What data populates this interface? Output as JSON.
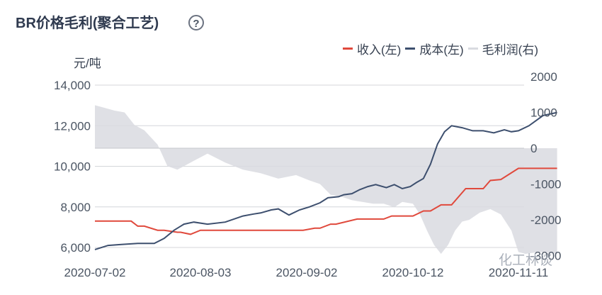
{
  "title": "BR价格毛利(聚合工艺)",
  "help_symbol": "?",
  "watermark": "化工林谈",
  "colors": {
    "revenue": "#e0493c",
    "cost": "#3d4f6e",
    "profit": "#d9dbe0",
    "grid": "#d4d6da"
  },
  "chart_data": {
    "type": "line",
    "title": "BR价格毛利(聚合工艺)",
    "left_axis": {
      "unit": "元/吨",
      "ticks": [
        6000,
        8000,
        10000,
        12000,
        14000
      ],
      "tick_labels": [
        "6,000",
        "8,000",
        "10,000",
        "12,000",
        "14,000"
      ],
      "range": [
        5600,
        14600
      ]
    },
    "right_axis": {
      "ticks": [
        -3000,
        -2000,
        -1000,
        0,
        1000,
        2000
      ],
      "tick_labels": [
        "-3000",
        "-2000",
        "-1000",
        "0",
        "1000",
        "2000"
      ],
      "range": [
        -3000,
        2000
      ]
    },
    "x_ticks": [
      "2020-07-02",
      "2020-08-03",
      "2020-09-02",
      "2020-10-12",
      "2020-11-11"
    ],
    "legend": [
      "收入(左)",
      "成本(左)",
      "毛利润(右)"
    ],
    "grid": true,
    "series": [
      {
        "name": "收入(左)",
        "axis": "left",
        "dates": [
          "2020-07-02",
          "2020-07-13",
          "2020-07-15",
          "2020-07-17",
          "2020-07-21",
          "2020-07-23",
          "2020-07-27",
          "2020-07-28",
          "2020-07-31",
          "2020-08-03",
          "2020-08-20",
          "2020-09-01",
          "2020-09-05",
          "2020-09-07",
          "2020-09-11",
          "2020-09-13",
          "2020-09-21",
          "2020-10-01",
          "2020-10-04",
          "2020-10-12",
          "2020-10-15",
          "2020-10-17",
          "2020-10-20",
          "2020-10-23",
          "2020-10-27",
          "2020-11-01",
          "2020-11-03",
          "2020-11-06",
          "2020-11-11",
          "2020-11-22"
        ],
        "values": [
          7300,
          7300,
          7050,
          7050,
          6850,
          6850,
          6750,
          6750,
          6650,
          6850,
          6850,
          6850,
          6950,
          6950,
          7150,
          7150,
          7400,
          7400,
          7550,
          7550,
          7800,
          7800,
          8100,
          8100,
          8900,
          8900,
          9300,
          9350,
          9900,
          9900
        ]
      },
      {
        "name": "成本(左)",
        "axis": "left",
        "dates": [
          "2020-07-02",
          "2020-07-06",
          "2020-07-10",
          "2020-07-15",
          "2020-07-20",
          "2020-07-23",
          "2020-07-26",
          "2020-07-29",
          "2020-08-01",
          "2020-08-05",
          "2020-08-10",
          "2020-08-15",
          "2020-08-18",
          "2020-08-20",
          "2020-08-23",
          "2020-08-25",
          "2020-08-28",
          "2020-08-31",
          "2020-09-03",
          "2020-09-07",
          "2020-09-10",
          "2020-09-14",
          "2020-09-16",
          "2020-09-19",
          "2020-09-22",
          "2020-09-25",
          "2020-09-28",
          "2020-10-02",
          "2020-10-05",
          "2020-10-08",
          "2020-10-11",
          "2020-10-13",
          "2020-10-15",
          "2020-10-17",
          "2020-10-19",
          "2020-10-21",
          "2020-10-23",
          "2020-10-26",
          "2020-10-29",
          "2020-11-01",
          "2020-11-04",
          "2020-11-07",
          "2020-11-09",
          "2020-11-11",
          "2020-11-14",
          "2020-11-18",
          "2020-11-22"
        ],
        "values": [
          5900,
          6100,
          6150,
          6200,
          6200,
          6450,
          6850,
          7150,
          7250,
          7150,
          7250,
          7550,
          7650,
          7700,
          7850,
          7900,
          7600,
          7850,
          8000,
          8200,
          8450,
          8500,
          8600,
          8650,
          8850,
          9000,
          9100,
          8950,
          9100,
          8900,
          9000,
          9200,
          9400,
          10100,
          11100,
          11700,
          12000,
          11900,
          11750,
          11750,
          11650,
          11800,
          11700,
          11750,
          12000,
          12500,
          12650
        ]
      },
      {
        "name": "毛利润(右)",
        "axis": "right",
        "style": "area",
        "dates": [
          "2020-07-02",
          "2020-07-04",
          "2020-07-08",
          "2020-07-11",
          "2020-07-14",
          "2020-07-17",
          "2020-07-21",
          "2020-07-24",
          "2020-07-27",
          "2020-08-01",
          "2020-08-05",
          "2020-08-10",
          "2020-08-15",
          "2020-08-20",
          "2020-08-25",
          "2020-08-30",
          "2020-09-03",
          "2020-09-07",
          "2020-09-11",
          "2020-09-15",
          "2020-09-19",
          "2020-09-23",
          "2020-09-27",
          "2020-10-01",
          "2020-10-05",
          "2020-10-08",
          "2020-10-12",
          "2020-10-14",
          "2020-10-16",
          "2020-10-18",
          "2020-10-20",
          "2020-10-22",
          "2020-10-24",
          "2020-10-26",
          "2020-10-28",
          "2020-10-31",
          "2020-11-03",
          "2020-11-06",
          "2020-11-09",
          "2020-11-11",
          "2020-11-13",
          "2020-11-17",
          "2020-11-22"
        ],
        "values": [
          1200,
          1150,
          1050,
          1000,
          650,
          500,
          100,
          -500,
          -600,
          -350,
          -150,
          -400,
          -600,
          -700,
          -850,
          -750,
          -900,
          -1000,
          -1300,
          -1350,
          -1450,
          -1500,
          -1550,
          -1550,
          -1650,
          -1500,
          -1550,
          -1850,
          -2300,
          -2700,
          -2950,
          -2700,
          -2300,
          -2050,
          -2000,
          -1800,
          -1700,
          -1850,
          -2300,
          -2900,
          -2950,
          -2900,
          -2950
        ]
      }
    ]
  }
}
